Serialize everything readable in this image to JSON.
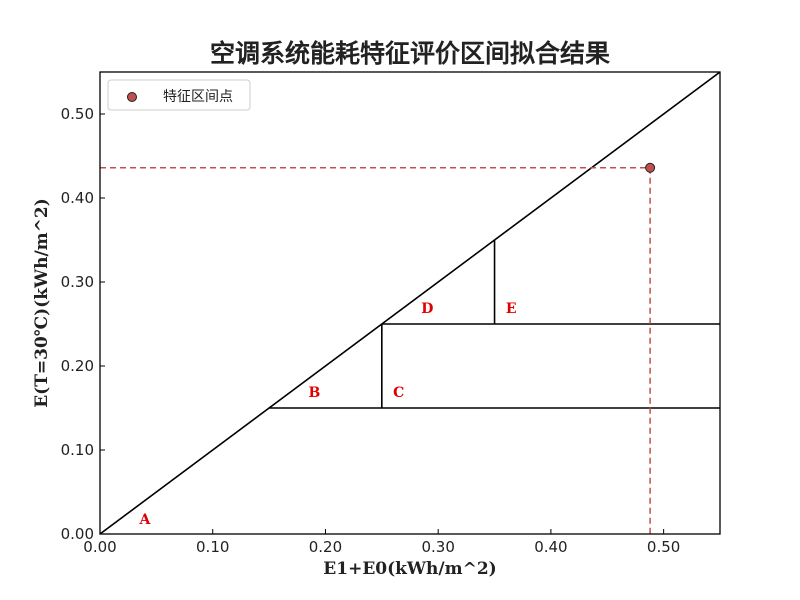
{
  "chart_data": {
    "type": "scatter",
    "title": "空调系统能耗特征评价区间拟合结果",
    "xlabel": "E1+E0(kWh/m^2)",
    "ylabel": "E(T=30℃)(kWh/m^2)",
    "xlim": [
      0,
      0.55
    ],
    "ylim": [
      0,
      0.55
    ],
    "xticks": [
      "0.00",
      "0.10",
      "0.20",
      "0.30",
      "0.40",
      "0.50"
    ],
    "yticks": [
      "0.00",
      "0.10",
      "0.20",
      "0.30",
      "0.40",
      "0.50"
    ],
    "grid": false,
    "legend": {
      "placement": "top-left",
      "entries": [
        "特征区间点"
      ]
    },
    "series": [
      {
        "name": "特征区间点",
        "x": [
          0.488
        ],
        "y": [
          0.436
        ],
        "color": "#c0504d"
      }
    ],
    "reference_lines": [
      {
        "from": [
          0,
          0
        ],
        "to": [
          0.55,
          0.55
        ]
      },
      {
        "from": [
          0.15,
          0.15
        ],
        "to": [
          0.55,
          0.15
        ]
      },
      {
        "from": [
          0.25,
          0.25
        ],
        "to": [
          0.55,
          0.25
        ]
      },
      {
        "from": [
          0.25,
          0.15
        ],
        "to": [
          0.25,
          0.25
        ]
      },
      {
        "from": [
          0.35,
          0.25
        ],
        "to": [
          0.35,
          0.35
        ]
      }
    ],
    "guide_lines": {
      "point": [
        0.488,
        0.436
      ],
      "color": "#c0504d",
      "style": "dashed"
    },
    "region_labels": [
      {
        "text": "A",
        "x": 0.035,
        "y": 0.012
      },
      {
        "text": "B",
        "x": 0.185,
        "y": 0.163
      },
      {
        "text": "C",
        "x": 0.26,
        "y": 0.163
      },
      {
        "text": "D",
        "x": 0.285,
        "y": 0.263
      },
      {
        "text": "E",
        "x": 0.36,
        "y": 0.263
      }
    ],
    "label_color": "#e00000"
  }
}
